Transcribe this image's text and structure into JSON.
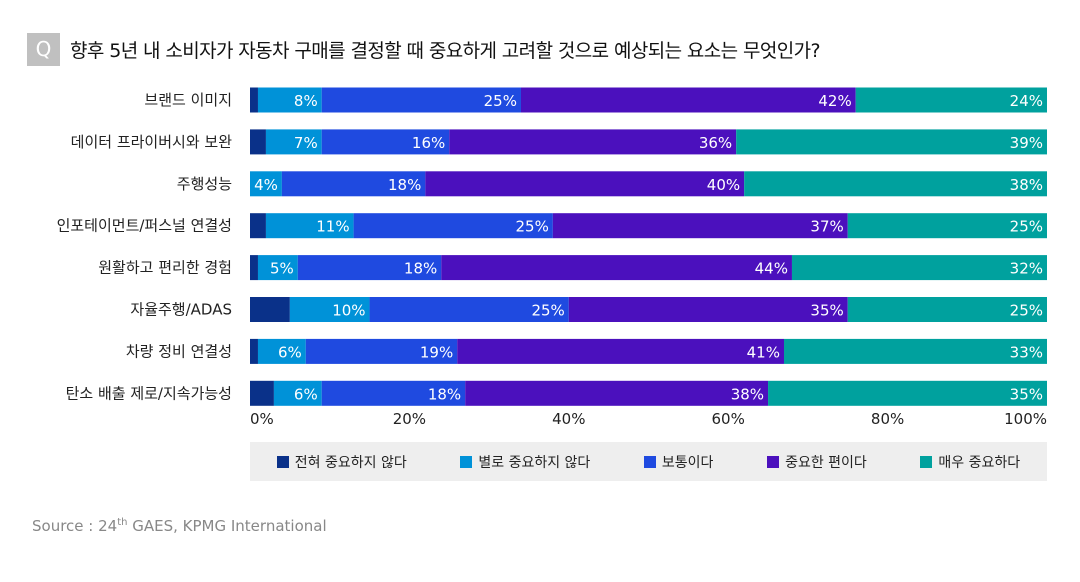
{
  "title": {
    "badge": "Q",
    "text": "향후 5년 내 소비자가 자동차 구매를 결정할 때 중요하게 고려할 것으로 예상되는 요소는 무엇인가?"
  },
  "chart_data": {
    "type": "bar",
    "orientation": "horizontal",
    "stacked": true,
    "categories": [
      "브랜드 이미지",
      "데이터 프라이버시와 보완",
      "주행성능",
      "인포테이먼트/퍼스널 연결성",
      "원활하고 편리한 경험",
      "자율주행/ADAS",
      "차량 정비 연결성",
      "탄소 배출 제로/지속가능성"
    ],
    "series": [
      {
        "name": "전혀 중요하지 않다",
        "color": "#0a3189",
        "values": [
          1,
          2,
          0,
          2,
          1,
          5,
          1,
          3
        ],
        "labeled": false
      },
      {
        "name": "별로 중요하지 않다",
        "color": "#0092d8",
        "values": [
          8,
          7,
          4,
          11,
          5,
          10,
          6,
          6
        ],
        "labeled": true
      },
      {
        "name": "보통이다",
        "color": "#1f4ae0",
        "values": [
          25,
          16,
          18,
          25,
          18,
          25,
          19,
          18
        ],
        "labeled": true
      },
      {
        "name": "중요한 편이다",
        "color": "#4b10bd",
        "values": [
          42,
          36,
          40,
          37,
          44,
          35,
          41,
          38
        ],
        "labeled": true
      },
      {
        "name": "매우 중요하다",
        "color": "#00a19e",
        "values": [
          24,
          39,
          38,
          25,
          32,
          25,
          33,
          35
        ],
        "labeled": true
      }
    ],
    "xlim": [
      0,
      100
    ],
    "xticks": [
      "0%",
      "20%",
      "40%",
      "60%",
      "80%",
      "100%"
    ],
    "grid": false,
    "legend": "bottom"
  },
  "source": {
    "prefix": "Source : 24",
    "sup": "th",
    "suffix": " GAES, KPMG International"
  }
}
